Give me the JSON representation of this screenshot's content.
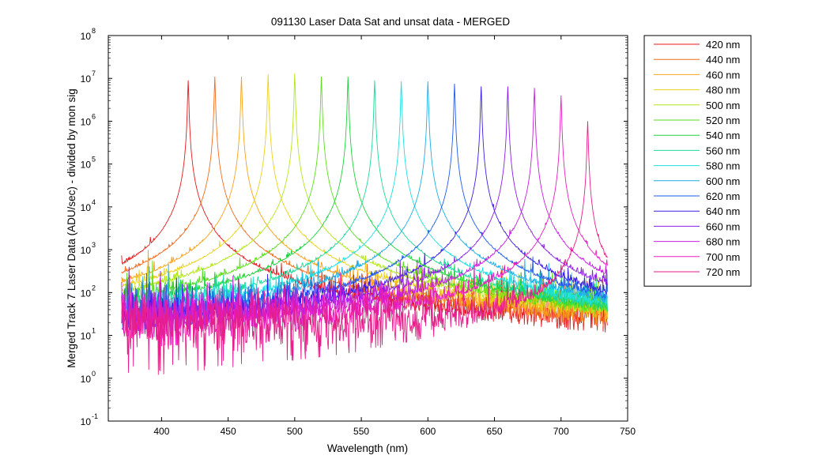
{
  "chart_data": {
    "type": "line",
    "title": "091130 Laser Data  Sat and unsat data - MERGED",
    "xlabel": "Wavelength (nm)",
    "ylabel": "Merged Track 7 Laser Data (ADU/sec) - divided by mon sig",
    "xlim": [
      360,
      750
    ],
    "ylim": [
      0.1,
      100000000
    ],
    "yscale": "log",
    "x_ticks": [
      400,
      450,
      500,
      550,
      600,
      650,
      700,
      750
    ],
    "y_ticks": [
      {
        "base": "10",
        "exp": "-1",
        "value": 0.1
      },
      {
        "base": "10",
        "exp": "0",
        "value": 1
      },
      {
        "base": "10",
        "exp": "1",
        "value": 10
      },
      {
        "base": "10",
        "exp": "2",
        "value": 100
      },
      {
        "base": "10",
        "exp": "3",
        "value": 1000
      },
      {
        "base": "10",
        "exp": "4",
        "value": 10000
      },
      {
        "base": "10",
        "exp": "5",
        "value": 100000
      },
      {
        "base": "10",
        "exp": "6",
        "value": 1000000
      },
      {
        "base": "10",
        "exp": "7",
        "value": 10000000
      },
      {
        "base": "10",
        "exp": "8",
        "value": 100000000
      }
    ],
    "grid": false,
    "legend_position": "outside-top-right",
    "x_range_of_data": [
      370,
      735
    ],
    "series": [
      {
        "name": "420 nm",
        "peak_x": 420,
        "peak_y": 9000000,
        "background": 70,
        "color": "#e41a1c"
      },
      {
        "name": "440 nm",
        "peak_x": 440,
        "peak_y": 11000000,
        "background": 60,
        "color": "#f26b1d"
      },
      {
        "name": "460 nm",
        "peak_x": 460,
        "peak_y": 11000000,
        "background": 55,
        "color": "#f7a21b"
      },
      {
        "name": "480 nm",
        "peak_x": 480,
        "peak_y": 12500000,
        "background": 50,
        "color": "#e8d21d"
      },
      {
        "name": "500 nm",
        "peak_x": 500,
        "peak_y": 13000000,
        "background": 45,
        "color": "#b5e61d"
      },
      {
        "name": "520 nm",
        "peak_x": 520,
        "peak_y": 11000000,
        "background": 40,
        "color": "#5ede1e"
      },
      {
        "name": "540 nm",
        "peak_x": 540,
        "peak_y": 11000000,
        "background": 40,
        "color": "#1ed23c"
      },
      {
        "name": "560 nm",
        "peak_x": 560,
        "peak_y": 9000000,
        "background": 40,
        "color": "#1ed99a"
      },
      {
        "name": "580 nm",
        "peak_x": 580,
        "peak_y": 8500000,
        "background": 40,
        "color": "#1ee0e0"
      },
      {
        "name": "600 nm",
        "peak_x": 600,
        "peak_y": 8500000,
        "background": 40,
        "color": "#1eaee6"
      },
      {
        "name": "620 nm",
        "peak_x": 620,
        "peak_y": 7500000,
        "background": 40,
        "color": "#1e5aee"
      },
      {
        "name": "640 nm",
        "peak_x": 640,
        "peak_y": 6500000,
        "background": 40,
        "color": "#3a1ee6"
      },
      {
        "name": "660 nm",
        "peak_x": 660,
        "peak_y": 6500000,
        "background": 40,
        "color": "#8a1ee6"
      },
      {
        "name": "680 nm",
        "peak_x": 680,
        "peak_y": 6000000,
        "background": 35,
        "color": "#c61ee0"
      },
      {
        "name": "700 nm",
        "peak_x": 700,
        "peak_y": 4000000,
        "background": 30,
        "color": "#e61ec2"
      },
      {
        "name": "720 nm",
        "peak_x": 720,
        "peak_y": 1000000,
        "background": 30,
        "color": "#e61e8a"
      }
    ]
  }
}
